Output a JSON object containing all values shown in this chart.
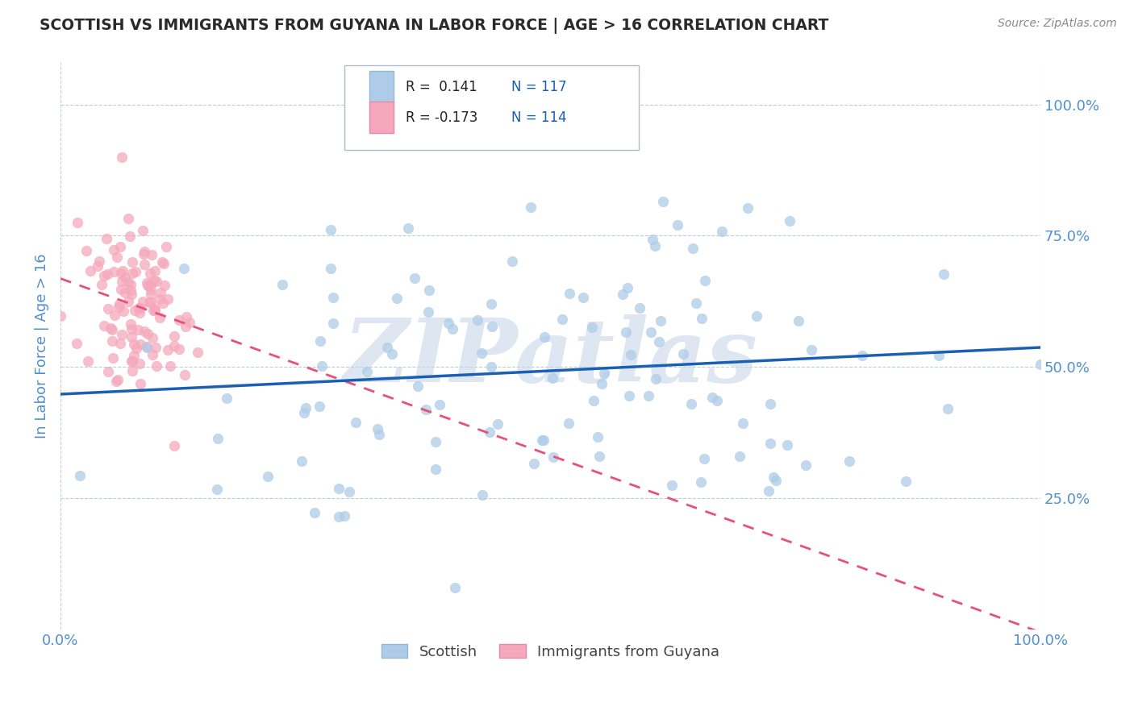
{
  "title": "SCOTTISH VS IMMIGRANTS FROM GUYANA IN LABOR FORCE | AGE > 16 CORRELATION CHART",
  "source": "Source: ZipAtlas.com",
  "ylabel": "In Labor Force | Age > 16",
  "xlim": [
    0.0,
    1.0
  ],
  "ylim": [
    0.0,
    1.08
  ],
  "x_ticks": [
    0.0,
    1.0
  ],
  "y_ticks": [
    0.25,
    0.5,
    0.75,
    1.0
  ],
  "x_tick_labels": [
    "0.0%",
    "100.0%"
  ],
  "y_tick_labels": [
    "25.0%",
    "50.0%",
    "75.0%",
    "100.0%"
  ],
  "R_scottish": 0.141,
  "N_scottish": 117,
  "R_guyana": -0.173,
  "N_guyana": 114,
  "color_scottish": "#aecce8",
  "color_guyana": "#f5a8bc",
  "line_color_scottish": "#1a5fb4",
  "line_color_guyana": "#e8507a",
  "watermark_text": "ZIPatlas",
  "watermark_color": "#c8d8e8",
  "background_color": "#ffffff",
  "grid_color": "#c0ccd8",
  "title_color": "#2a2a2a",
  "axis_label_color": "#5090d0",
  "tick_label_color": "#5090d0",
  "source_color": "#888888"
}
